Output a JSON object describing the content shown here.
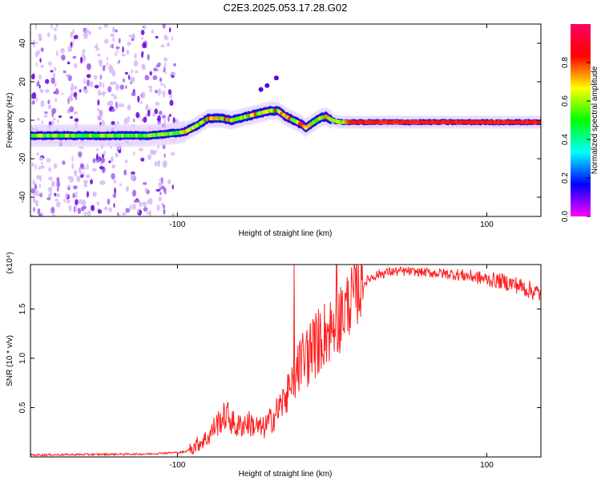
{
  "figure": {
    "title": "C2E3.2025.053.17.28.G02"
  },
  "chart_data": [
    {
      "type": "heatmap",
      "name": "spectrogram",
      "title": "C2E3.2025.053.17.28.G02",
      "xlabel": "Height of straight line (km)",
      "ylabel": "Frequency (Hz)",
      "xlim": [
        -195,
        135
      ],
      "ylim": [
        -50,
        50
      ],
      "x_ticks": [
        -100,
        100
      ],
      "y_ticks": [
        40,
        20,
        0,
        -20,
        -40
      ],
      "colorbar": {
        "label": "Normalized spectral amplitude",
        "range": [
          0.0,
          1.0
        ],
        "ticks": [
          "0.0",
          "0.2",
          "0.4",
          "0.6",
          "0.8"
        ],
        "colormap": [
          "#ff00ff",
          "#0000ff",
          "#00ffff",
          "#00ff00",
          "#ffff00",
          "#ff0000",
          "#ff0066"
        ]
      },
      "trace": {
        "x": [
          -195,
          -180,
          -160,
          -140,
          -120,
          -105,
          -95,
          -88,
          -80,
          -72,
          -65,
          -60,
          -55,
          -50,
          -45,
          -40,
          -35,
          -30,
          -25,
          -20,
          -17,
          -12,
          -8,
          -4,
          0,
          5,
          10,
          20,
          40,
          60,
          80,
          100,
          120,
          135
        ],
        "y": [
          -8,
          -8,
          -8,
          -8,
          -8,
          -7,
          -6,
          -3,
          1,
          1,
          0,
          1,
          2,
          3,
          4,
          5,
          5,
          2,
          0,
          -2,
          -4,
          -1,
          1,
          2,
          0,
          -1,
          -1,
          -1,
          -1,
          -1,
          -1,
          -1,
          -1,
          -1
        ]
      },
      "noise_region_x": [
        -195,
        -100
      ]
    },
    {
      "type": "line",
      "name": "snr",
      "xlabel": "Height of straight line (km)",
      "ylabel": "SNR (10 * v/v)",
      "y_scale_label": "(x10⁴)",
      "xlim": [
        -195,
        135
      ],
      "ylim": [
        0,
        1.95
      ],
      "x_ticks": [
        -100,
        100
      ],
      "y_ticks": [
        0.5,
        1.0,
        1.5
      ],
      "y_tick_labels": [
        "0.5",
        "1.0",
        "1.5"
      ],
      "series": [
        {
          "color": "#ff2020",
          "x": [
            -195,
            -120,
            -95,
            -88,
            -80,
            -75,
            -68,
            -62,
            -55,
            -45,
            -38,
            -32,
            -26,
            -22,
            -18,
            -15,
            -10,
            -5,
            0,
            5,
            10,
            15,
            20,
            25,
            30,
            35,
            40,
            50,
            60,
            70,
            80,
            90,
            100,
            110,
            120,
            130,
            135
          ],
          "y": [
            0.02,
            0.03,
            0.05,
            0.12,
            0.2,
            0.33,
            0.43,
            0.3,
            0.35,
            0.28,
            0.4,
            0.55,
            0.7,
            0.9,
            1.0,
            1.05,
            1.15,
            1.25,
            1.3,
            1.4,
            1.55,
            1.65,
            1.75,
            1.82,
            1.85,
            1.87,
            1.88,
            1.88,
            1.87,
            1.86,
            1.85,
            1.83,
            1.8,
            1.78,
            1.74,
            1.68,
            1.65
          ]
        }
      ]
    }
  ]
}
